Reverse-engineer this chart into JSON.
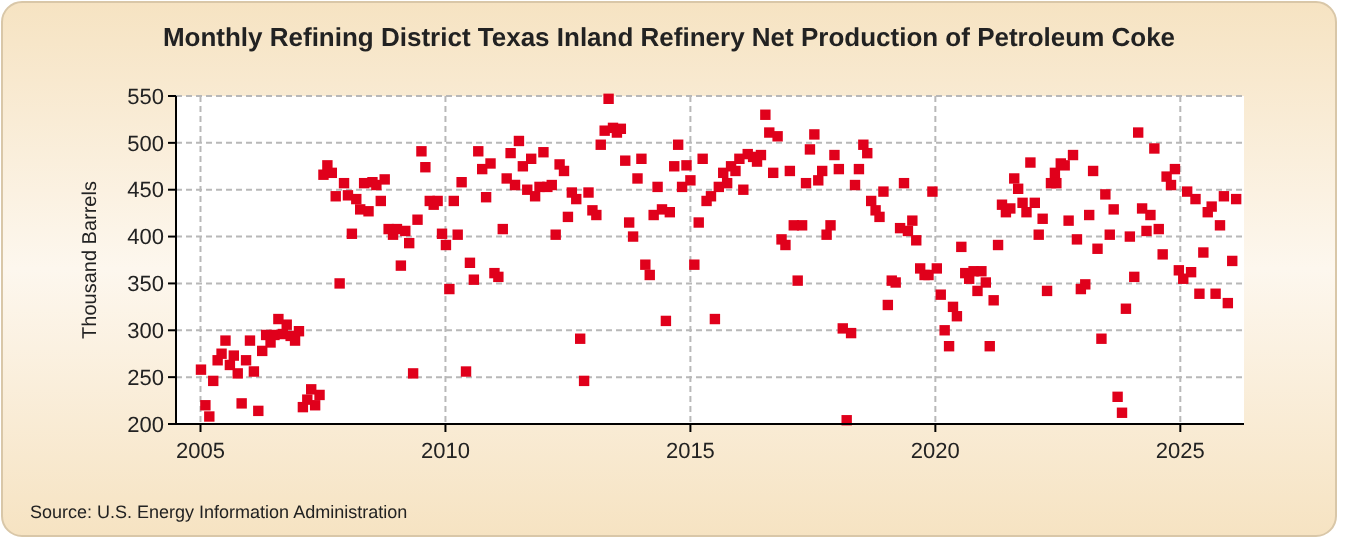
{
  "chart_data": {
    "type": "scatter",
    "title": "Monthly Refining District Texas Inland Refinery Net Production of Petroleum Coke",
    "ylabel": "Thousand Barrels",
    "annotations": [
      "Source: U.S. Energy Information Administration"
    ],
    "xlim": [
      2004.5,
      2026.3
    ],
    "xticks": [
      2005,
      2010,
      2015,
      2020,
      2025
    ],
    "ylim": [
      200,
      550
    ],
    "yticks": [
      200,
      250,
      300,
      350,
      400,
      450,
      500,
      550
    ],
    "grid": true,
    "marker": "square",
    "series": [
      {
        "color": "#e0001b",
        "x": [
          2005.01,
          2005.1,
          2005.18,
          2005.26,
          2005.35,
          2005.43,
          2005.51,
          2005.6,
          2005.68,
          2005.76,
          2005.84,
          2005.93,
          2006.01,
          2006.09,
          2006.18,
          2006.26,
          2006.34,
          2006.43,
          2006.51,
          2006.59,
          2006.68,
          2006.76,
          2006.84,
          2006.93,
          2007.01,
          2007.09,
          2007.18,
          2007.26,
          2007.34,
          2007.43,
          2007.51,
          2007.59,
          2007.68,
          2007.76,
          2007.84,
          2007.93,
          2008.01,
          2008.09,
          2008.18,
          2008.26,
          2008.34,
          2008.43,
          2008.51,
          2008.59,
          2008.68,
          2008.76,
          2008.84,
          2008.93,
          2009.01,
          2009.09,
          2009.18,
          2009.26,
          2009.34,
          2009.43,
          2009.51,
          2009.59,
          2009.68,
          2009.76,
          2009.84,
          2009.93,
          2010.01,
          2010.08,
          2010.17,
          2010.25,
          2010.33,
          2010.42,
          2010.5,
          2010.58,
          2010.67,
          2010.75,
          2010.83,
          2010.92,
          2011.0,
          2011.08,
          2011.17,
          2011.25,
          2011.33,
          2011.42,
          2011.5,
          2011.58,
          2011.67,
          2011.75,
          2011.83,
          2011.92,
          2012.0,
          2012.08,
          2012.17,
          2012.25,
          2012.33,
          2012.42,
          2012.5,
          2012.58,
          2012.67,
          2012.75,
          2012.83,
          2012.92,
          2013.0,
          2013.08,
          2013.17,
          2013.25,
          2013.33,
          2013.42,
          2013.5,
          2013.58,
          2013.67,
          2013.75,
          2013.83,
          2013.92,
          2014.0,
          2014.08,
          2014.17,
          2014.25,
          2014.33,
          2014.42,
          2014.5,
          2014.58,
          2014.67,
          2014.75,
          2014.83,
          2014.92,
          2015.0,
          2015.08,
          2015.17,
          2015.25,
          2015.33,
          2015.42,
          2015.5,
          2015.58,
          2015.67,
          2015.75,
          2015.83,
          2015.92,
          2016.0,
          2016.08,
          2016.17,
          2016.28,
          2016.36,
          2016.44,
          2016.53,
          2016.61,
          2016.69,
          2016.78,
          2016.86,
          2016.94,
          2017.03,
          2017.11,
          2017.19,
          2017.28,
          2017.36,
          2017.44,
          2017.53,
          2017.61,
          2017.69,
          2017.78,
          2017.86,
          2017.94,
          2018.03,
          2018.11,
          2018.19,
          2018.28,
          2018.36,
          2018.44,
          2018.53,
          2018.61,
          2018.69,
          2018.78,
          2018.86,
          2018.94,
          2019.03,
          2019.11,
          2019.19,
          2019.28,
          2019.36,
          2019.44,
          2019.53,
          2019.61,
          2019.69,
          2019.78,
          2019.86,
          2019.94,
          2020.03,
          2020.11,
          2020.19,
          2020.28,
          2020.36,
          2020.44,
          2020.53,
          2020.61,
          2020.69,
          2020.78,
          2020.86,
          2020.94,
          2021.03,
          2021.11,
          2021.19,
          2021.28,
          2021.36,
          2021.44,
          2021.53,
          2021.61,
          2021.69,
          2021.78,
          2021.86,
          2021.94,
          2022.03,
          2022.11,
          2022.19,
          2022.28,
          2022.36,
          2022.44,
          2022.47,
          2022.56,
          2022.64,
          2022.72,
          2022.81,
          2022.89,
          2022.97,
          2023.06,
          2023.14,
          2023.22,
          2023.31,
          2023.39,
          2023.47,
          2023.56,
          2023.64,
          2023.72,
          2023.81,
          2023.89,
          2023.97,
          2024.06,
          2024.14,
          2024.22,
          2024.31,
          2024.39,
          2024.47,
          2024.56,
          2024.64,
          2024.72,
          2024.81,
          2024.89,
          2024.97,
          2025.06,
          2025.14,
          2025.22,
          2025.31,
          2025.39,
          2025.47,
          2025.56,
          2025.64,
          2025.72,
          2025.81,
          2025.89,
          2025.97,
          2026.06,
          2026.14
        ],
        "values": [
          258,
          220,
          208,
          246,
          268,
          275,
          289,
          263,
          273,
          254,
          222,
          268,
          289,
          256,
          214,
          278,
          295,
          287,
          295,
          312,
          296,
          306,
          294,
          289,
          299,
          218,
          226,
          237,
          220,
          231,
          466,
          476,
          468,
          443,
          350,
          457,
          444,
          403,
          440,
          429,
          457,
          427,
          458,
          455,
          438,
          461,
          408,
          402,
          408,
          369,
          406,
          393,
          254,
          418,
          491,
          474,
          438,
          434,
          438,
          403,
          391,
          344,
          438,
          402,
          458,
          256,
          372,
          354,
          491,
          472,
          442,
          478,
          361,
          357,
          408,
          462,
          489,
          455,
          502,
          475,
          450,
          483,
          443,
          453,
          490,
          453,
          455,
          402,
          477,
          470,
          421,
          447,
          440,
          291,
          246,
          447,
          428,
          423,
          498,
          513,
          547,
          516,
          511,
          515,
          481,
          415,
          400,
          462,
          483,
          370,
          359,
          423,
          453,
          429,
          310,
          426,
          475,
          498,
          453,
          476,
          460,
          370,
          415,
          483,
          438,
          443,
          312,
          453,
          468,
          457,
          475,
          470,
          483,
          450,
          488,
          485,
          480,
          487,
          530,
          511,
          468,
          507,
          397,
          391,
          470,
          412,
          353,
          412,
          457,
          493,
          509,
          460,
          470,
          402,
          412,
          487,
          472,
          302,
          204,
          297,
          455,
          472,
          498,
          489,
          438,
          428,
          421,
          448,
          327,
          353,
          351,
          409,
          457,
          406,
          417,
          396,
          366,
          359,
          359,
          448,
          366,
          338,
          300,
          283,
          325,
          315,
          389,
          361,
          355,
          363,
          342,
          363,
          351,
          283,
          332,
          391,
          434,
          426,
          430,
          462,
          451,
          436,
          426,
          479,
          436,
          402,
          419,
          342,
          457,
          468,
          457,
          478,
          476,
          417,
          487,
          397,
          344,
          349,
          423,
          470,
          387,
          291,
          445,
          402,
          429,
          229,
          212,
          323,
          400,
          357,
          511,
          430,
          406,
          423,
          494,
          408,
          381,
          464,
          455,
          472,
          364,
          355,
          448,
          362,
          440,
          339,
          383,
          426,
          432,
          339,
          412,
          443,
          329,
          374,
          440
        ]
      }
    ]
  }
}
